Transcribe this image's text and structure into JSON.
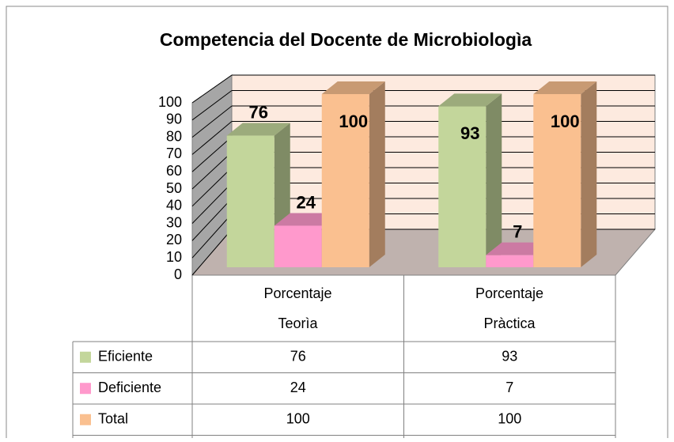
{
  "chart_data": {
    "type": "bar3d",
    "title": "Competencia del Docente de Microbiologìa",
    "categories": [
      "Porcentaje Teorìa",
      "Porcentaje Pràctica"
    ],
    "series": [
      {
        "name": "Eficiente",
        "color": "#c3d69b",
        "values": [
          76,
          93
        ]
      },
      {
        "name": "Deficiente",
        "color": "#ff99cc",
        "values": [
          24,
          7
        ]
      },
      {
        "name": "Total",
        "color": "#fac090",
        "values": [
          100,
          100
        ]
      }
    ],
    "ylim": [
      0,
      100
    ],
    "yticks": [
      0,
      10,
      20,
      30,
      40,
      50,
      60,
      70,
      80,
      90,
      100
    ],
    "grid": true
  }
}
